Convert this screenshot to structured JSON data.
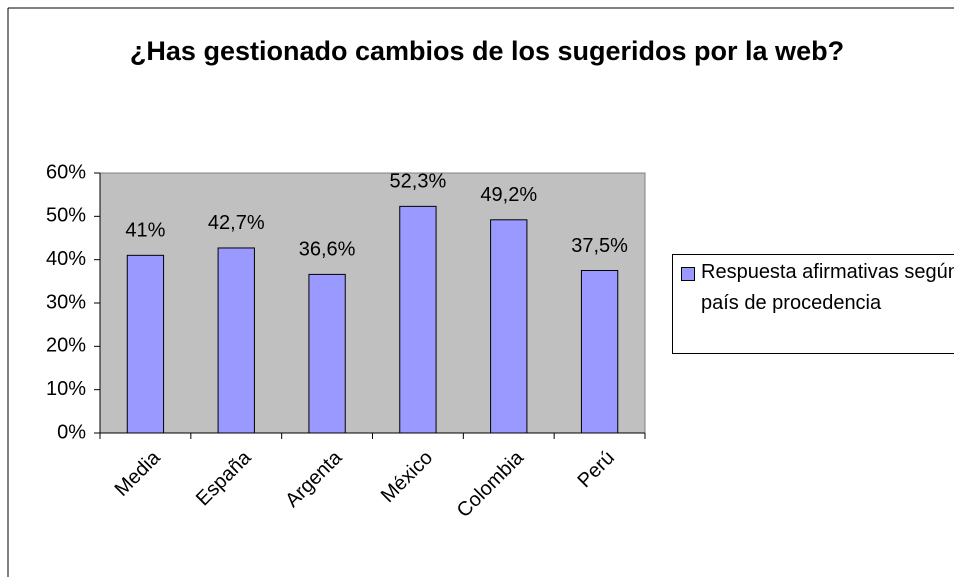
{
  "chart_data": {
    "type": "bar",
    "title": "¿Has gestionado cambios de los sugeridos por la web?",
    "categories": [
      "Media",
      "España",
      "Argenta",
      "México",
      "Colombia",
      "Perú"
    ],
    "series": [
      {
        "name": "Respuesta afirmativas según país de procedencia",
        "color": "#9999ff",
        "values": [
          41,
          42.7,
          36.6,
          52.3,
          49.2,
          37.5
        ],
        "value_labels": [
          "41%",
          "42,7%",
          "36,6%",
          "52,3%",
          "49,2%",
          "37,5%"
        ]
      }
    ],
    "ylim": [
      0,
      60
    ],
    "yticks": [
      {
        "value": 0,
        "label": "0%"
      },
      {
        "value": 10,
        "label": "10%"
      },
      {
        "value": 20,
        "label": "20%"
      },
      {
        "value": 30,
        "label": "30%"
      },
      {
        "value": 40,
        "label": "40%"
      },
      {
        "value": 50,
        "label": "50%"
      },
      {
        "value": 60,
        "label": "60%"
      }
    ],
    "grid": false,
    "legend": "right",
    "plot_background": "#c0c0c0"
  }
}
